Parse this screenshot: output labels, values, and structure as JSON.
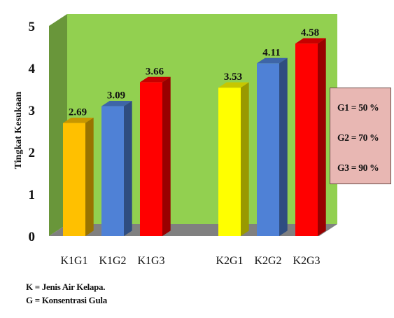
{
  "chart_data": {
    "type": "bar",
    "title": "",
    "xlabel": "",
    "ylabel": "Tingkat Kesukaan",
    "ylim": [
      0,
      5
    ],
    "yticks": [
      "0",
      "1",
      "2",
      "3",
      "4",
      "5"
    ],
    "categories": [
      "K1G1",
      "K1G2",
      "K1G3",
      "K2G1",
      "K2G2",
      "K2G3"
    ],
    "values": [
      2.69,
      3.09,
      3.66,
      3.53,
      4.11,
      4.58
    ],
    "value_labels": [
      "2.69",
      "3.09",
      "3.66",
      "3.53",
      "4.11",
      "4.58"
    ],
    "bar_colors": [
      "#ffc000",
      "#4f81d6",
      "#ff0000",
      "#ffff00",
      "#4f81d6",
      "#ff0000"
    ],
    "background_color": "#92d050",
    "floor_color": "#808080",
    "grid": false,
    "legend_placement": "right",
    "legend": [
      "G1 = 50 %",
      "G2 = 70 %",
      "G3 = 90 %"
    ],
    "notes": [
      "K = Jenis Air Kelapa.",
      "G = Konsentrasi Gula"
    ]
  }
}
